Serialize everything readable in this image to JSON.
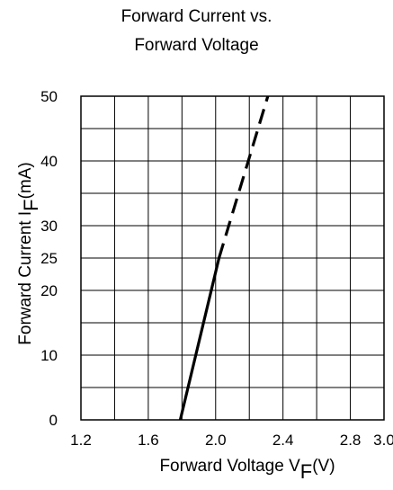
{
  "chart_data": {
    "type": "line",
    "title": [
      "Forward Current vs.",
      "Forward Voltage"
    ],
    "xlabel": {
      "text": "Forward Voltage",
      "symbol": "V",
      "sub": "F",
      "unit": "(V)"
    },
    "ylabel": {
      "text": "Forward Current",
      "symbol": "I",
      "sub": "F",
      "unit": "(mA)"
    },
    "xlim": [
      1.2,
      3.0
    ],
    "ylim": [
      0,
      50
    ],
    "xticks": [
      "1.2",
      "1.6",
      "2.0",
      "2.4",
      "2.8",
      "3.0"
    ],
    "xtick_values": [
      1.2,
      1.6,
      2.0,
      2.4,
      2.8,
      3.0
    ],
    "yticks": [
      "0",
      "10",
      "20",
      "25",
      "30",
      "40",
      "50"
    ],
    "ytick_values": [
      0,
      10,
      20,
      25,
      30,
      40,
      50
    ],
    "grid": true,
    "series": [
      {
        "style": "solid",
        "x": [
          1.79,
          2.02
        ],
        "y": [
          0,
          25
        ]
      },
      {
        "style": "dashed",
        "x": [
          2.02,
          2.31
        ],
        "y": [
          25,
          50
        ]
      }
    ]
  }
}
